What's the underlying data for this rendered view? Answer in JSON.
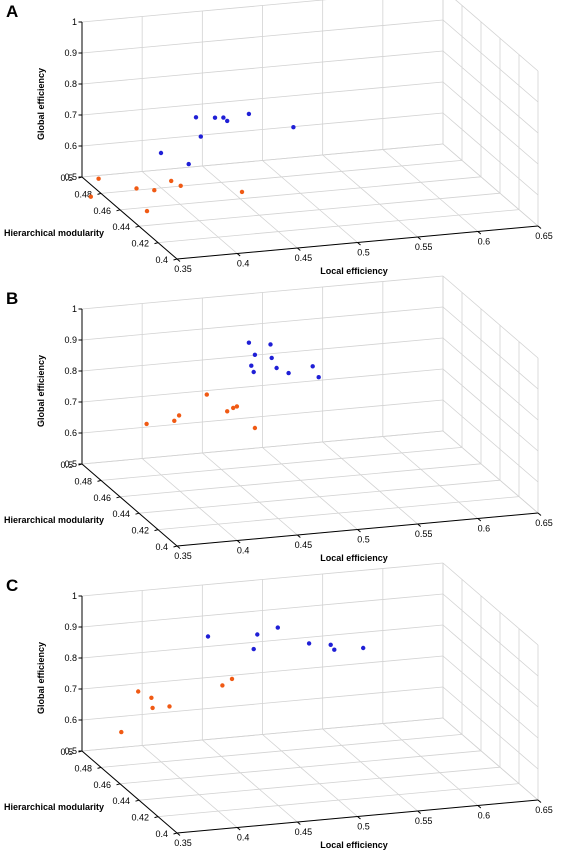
{
  "chart_data": [
    {
      "panel": "A",
      "type": "scatter",
      "title": "",
      "xlabel": "Local efficiency",
      "ylabel": "Hierarchical modularity",
      "zlabel": "Global efficiency",
      "xlim": [
        0.35,
        0.65
      ],
      "ylim": [
        0.4,
        0.5
      ],
      "zlim": [
        0.5,
        1
      ],
      "x_ticks": [
        "0.35",
        "0.4",
        "0.45",
        "0.5",
        "0.55",
        "0.6",
        "0.65"
      ],
      "y_ticks": [
        "0.4",
        "0.42",
        "0.44",
        "0.46",
        "0.48",
        "0.5"
      ],
      "z_ticks": [
        "0.5",
        "0.6",
        "0.7",
        "0.8",
        "0.9",
        "1"
      ],
      "grid": true,
      "series": [
        {
          "color": "#1f1fd6",
          "points": [
            [
              0.392,
              0.47,
              0.642
            ],
            [
              0.425,
              0.47,
              0.683
            ],
            [
              0.425,
              0.475,
              0.732
            ],
            [
              0.447,
              0.47,
              0.726
            ],
            [
              0.447,
              0.474,
              0.726
            ],
            [
              0.44,
              0.474,
              0.728
            ],
            [
              0.465,
              0.47,
              0.742
            ],
            [
              0.502,
              0.47,
              0.686
            ],
            [
              0.415,
              0.47,
              0.598
            ]
          ]
        },
        {
          "color": "#f05a14",
          "points": [
            [
              0.348,
              0.48,
              0.548
            ],
            [
              0.402,
              0.472,
              0.543
            ],
            [
              0.406,
              0.467,
              0.539
            ],
            [
              0.374,
              0.473,
              0.526
            ],
            [
              0.388,
              0.472,
              0.518
            ],
            [
              0.453,
              0.462,
              0.516
            ],
            [
              0.336,
              0.473,
              0.513
            ],
            [
              0.374,
              0.462,
              0.482
            ]
          ]
        }
      ]
    },
    {
      "panel": "B",
      "type": "scatter",
      "title": "",
      "xlabel": "Local efficiency",
      "ylabel": "Hierarchical modularity",
      "zlabel": "Global efficiency",
      "xlim": [
        0.35,
        0.65
      ],
      "ylim": [
        0.4,
        0.5
      ],
      "zlim": [
        0.5,
        1
      ],
      "x_ticks": [
        "0.35",
        "0.4",
        "0.45",
        "0.5",
        "0.55",
        "0.6",
        "0.65"
      ],
      "y_ticks": [
        "0.4",
        "0.42",
        "0.44",
        "0.46",
        "0.48",
        "0.5"
      ],
      "z_ticks": [
        "0.5",
        "0.6",
        "0.7",
        "0.8",
        "0.9",
        "1"
      ],
      "grid": true,
      "series": [
        {
          "color": "#1f1fd6",
          "points": [
            [
              0.465,
              0.47,
              0.93
            ],
            [
              0.483,
              0.47,
              0.918
            ],
            [
              0.47,
              0.47,
              0.889
            ],
            [
              0.484,
              0.47,
              0.874
            ],
            [
              0.467,
              0.47,
              0.855
            ],
            [
              0.488,
              0.47,
              0.84
            ],
            [
              0.518,
              0.47,
              0.835
            ],
            [
              0.469,
              0.47,
              0.834
            ],
            [
              0.498,
              0.47,
              0.82
            ],
            [
              0.523,
              0.47,
              0.798
            ]
          ]
        },
        {
          "color": "#f05a14",
          "points": [
            [
              0.43,
              0.47,
              0.775
            ],
            [
              0.455,
              0.47,
              0.728
            ],
            [
              0.452,
              0.47,
              0.724
            ],
            [
              0.447,
              0.47,
              0.715
            ],
            [
              0.407,
              0.47,
              0.716
            ],
            [
              0.403,
              0.47,
              0.7
            ],
            [
              0.38,
              0.47,
              0.698
            ],
            [
              0.47,
              0.47,
              0.653
            ]
          ]
        }
      ]
    },
    {
      "panel": "C",
      "type": "scatter",
      "title": "",
      "xlabel": "Local efficiency",
      "ylabel": "Hierarchical modularity",
      "zlabel": "Global efficiency",
      "xlim": [
        0.35,
        0.65
      ],
      "ylim": [
        0.4,
        0.5
      ],
      "zlim": [
        0.5,
        1
      ],
      "x_ticks": [
        "0.35",
        "0.4",
        "0.45",
        "0.5",
        "0.55",
        "0.6",
        "0.65"
      ],
      "y_ticks": [
        "0.4",
        "0.42",
        "0.44",
        "0.46",
        "0.48",
        "0.5"
      ],
      "z_ticks": [
        "0.5",
        "0.6",
        "0.7",
        "0.8",
        "0.9",
        "1"
      ],
      "grid": true,
      "series": [
        {
          "color": "#1f1fd6",
          "points": [
            [
              0.431,
              0.47,
              0.92
            ],
            [
              0.489,
              0.47,
              0.928
            ],
            [
              0.472,
              0.47,
              0.912
            ],
            [
              0.469,
              0.47,
              0.866
            ],
            [
              0.515,
              0.47,
              0.868
            ],
            [
              0.533,
              0.47,
              0.857
            ],
            [
              0.536,
              0.47,
              0.84
            ],
            [
              0.56,
              0.47,
              0.837
            ]
          ]
        },
        {
          "color": "#f05a14",
          "points": [
            [
              0.373,
              0.47,
              0.763
            ],
            [
              0.451,
              0.47,
              0.776
            ],
            [
              0.443,
              0.47,
              0.758
            ],
            [
              0.384,
              0.47,
              0.739
            ],
            [
              0.385,
              0.47,
              0.706
            ],
            [
              0.399,
              0.47,
              0.706
            ],
            [
              0.359,
              0.47,
              0.637
            ]
          ]
        }
      ]
    }
  ]
}
